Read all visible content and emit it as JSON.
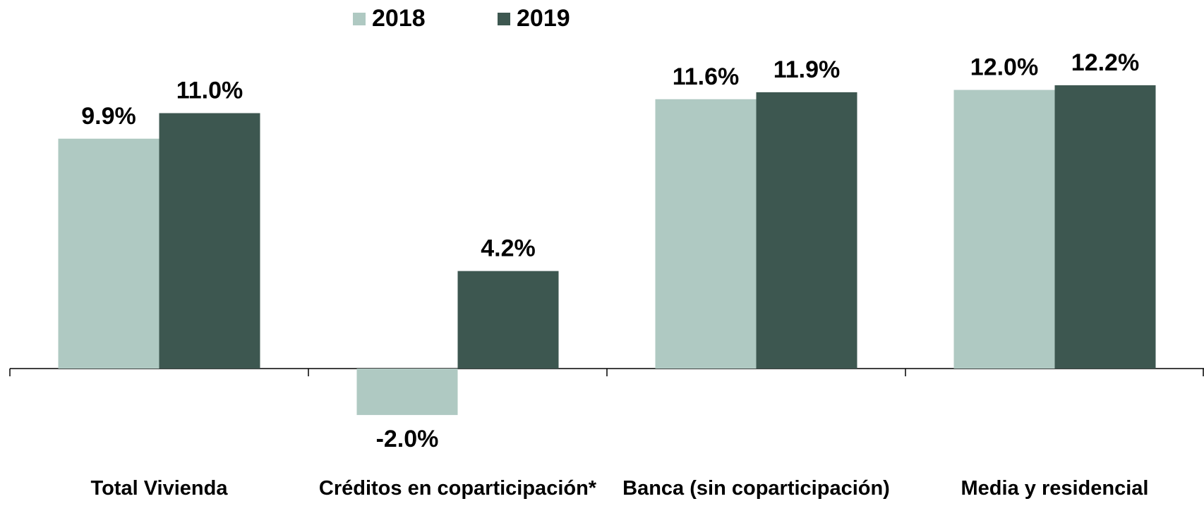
{
  "chart_data": {
    "type": "bar",
    "categories": [
      "Total Vivienda",
      "Créditos en coparticipación*",
      "Banca (sin coparticipación)",
      "Media y residencial"
    ],
    "series": [
      {
        "name": "2018",
        "color": "#afc9c2",
        "values": [
          9.9,
          -2.0,
          11.6,
          12.0
        ],
        "value_labels": [
          "9.9%",
          "-2.0%",
          "11.6%",
          "12.0%"
        ]
      },
      {
        "name": "2019",
        "color": "#3d5750",
        "values": [
          11.0,
          4.2,
          11.9,
          12.2
        ],
        "value_labels": [
          "11.0%",
          "4.2%",
          "11.9%",
          "12.2%"
        ]
      }
    ],
    "legend": "top"
  }
}
